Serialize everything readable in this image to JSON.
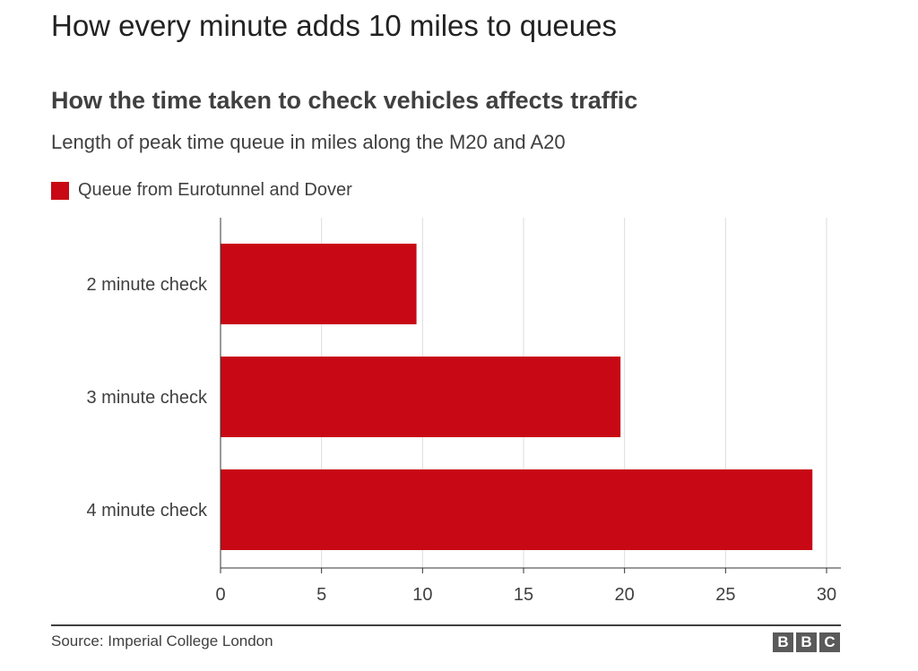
{
  "headline": "How every minute adds 10 miles to queues",
  "colors": {
    "bar": "#c80815",
    "grid": "#dcdcdc",
    "axis": "#333333",
    "text": "#404040"
  },
  "chart_data": {
    "type": "bar",
    "orientation": "horizontal",
    "title": "How the time taken to check vehicles affects traffic",
    "subtitle": "Length of peak time queue in miles along the M20 and A20",
    "categories": [
      "2 minute check",
      "3 minute check",
      "4 minute check"
    ],
    "series": [
      {
        "name": "Queue from Eurotunnel and Dover",
        "values": [
          9.7,
          19.8,
          29.3
        ]
      }
    ],
    "xlim": [
      0,
      30
    ],
    "xticks": [
      "0",
      "5",
      "10",
      "15",
      "20",
      "25",
      "30"
    ],
    "grid": true,
    "legend": "top-left"
  },
  "footer": {
    "source": "Source: Imperial College London",
    "logo_letters": [
      "B",
      "B",
      "C"
    ]
  }
}
